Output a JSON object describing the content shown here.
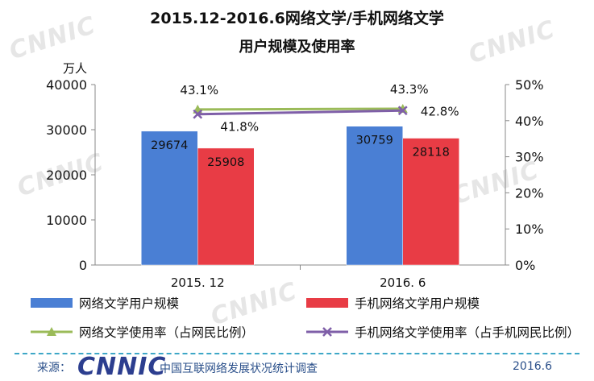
{
  "title_line1": "2015.12-2016.6网络文学/手机网络文学",
  "title_line2": "用户规模及使用率",
  "watermark_text": "CNNIC",
  "chart_data": {
    "type": "bar",
    "categories": [
      "2015. 12",
      "2016. 6"
    ],
    "y_left": {
      "unit_label": "万人",
      "ylim": [
        0,
        40000
      ],
      "ticks": [
        0,
        10000,
        20000,
        30000,
        40000
      ]
    },
    "y_right": {
      "ylim": [
        0,
        50
      ],
      "ticks": [
        "0%",
        "10%",
        "20%",
        "30%",
        "40%",
        "50%"
      ]
    },
    "series": [
      {
        "name": "网络文学用户规模",
        "kind": "bar",
        "axis": "left",
        "color": "#4a7fd4",
        "values": [
          29674,
          30759
        ]
      },
      {
        "name": "手机网络文学用户规模",
        "kind": "bar",
        "axis": "left",
        "color": "#e83c45",
        "values": [
          25908,
          28118
        ]
      },
      {
        "name": "网络文学使用率（占网民比例）",
        "kind": "line",
        "axis": "right",
        "color": "#9bbb59",
        "marker": "triangle",
        "values": [
          43.1,
          43.3
        ],
        "labels": [
          "43.1%",
          "43.3%"
        ]
      },
      {
        "name": "手机网络文学使用率（占手机网民比例）",
        "kind": "line",
        "axis": "right",
        "color": "#7f5fa8",
        "marker": "x",
        "values": [
          41.8,
          42.8
        ],
        "labels": [
          "41.8%",
          "42.8%"
        ]
      }
    ],
    "legend_position": "bottom"
  },
  "footer": {
    "source_label": "来源：",
    "logo_text": "CNNIC",
    "org_name": "中国互联网络发展状况统计调查",
    "date": "2016.6"
  }
}
